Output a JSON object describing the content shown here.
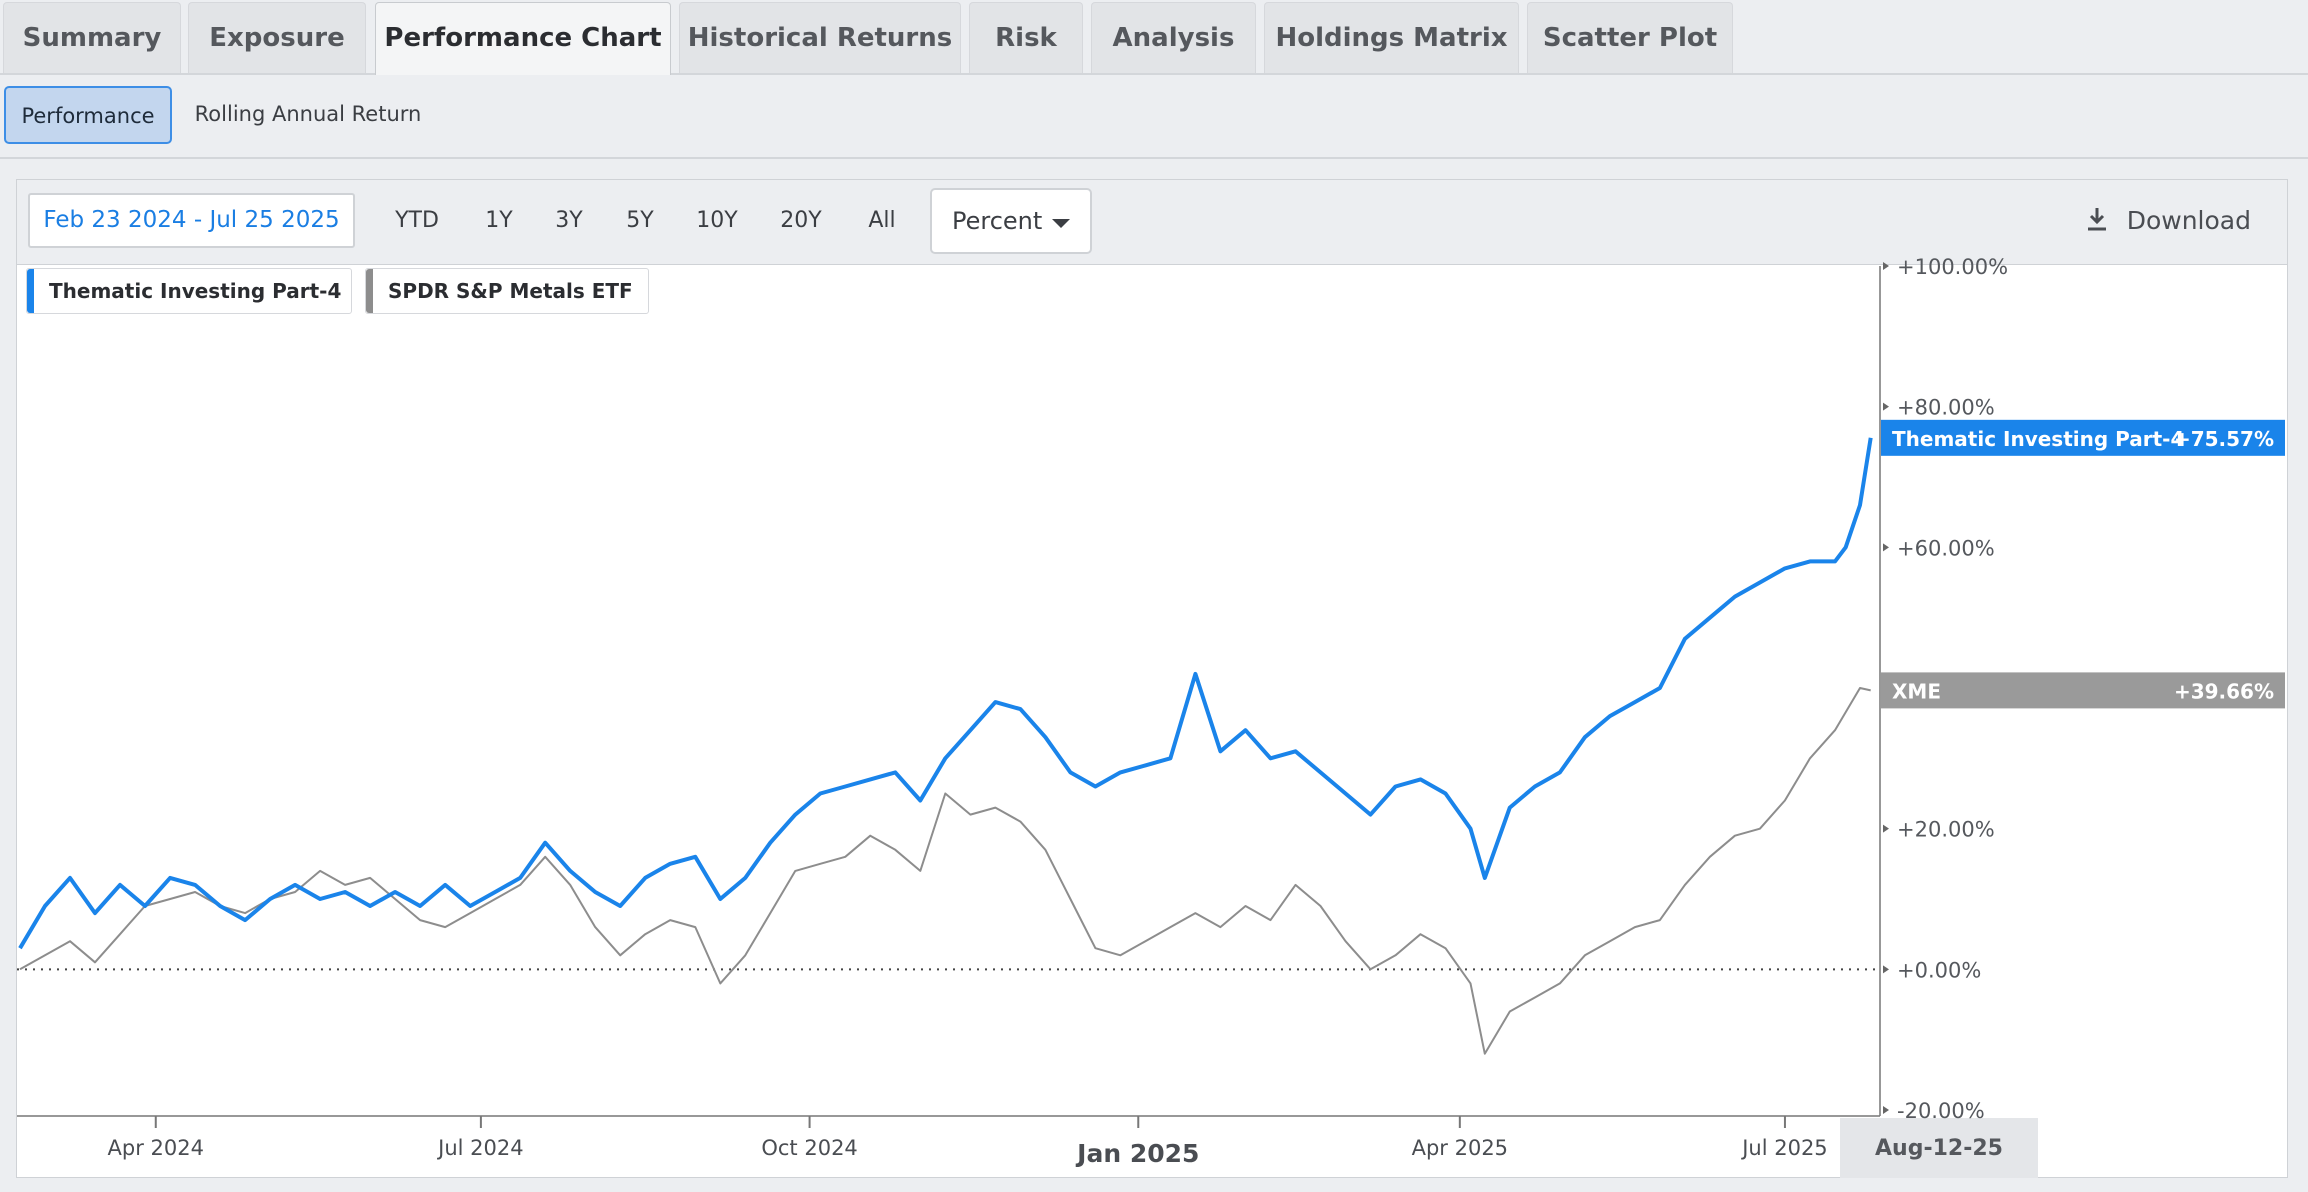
{
  "tabs": [
    "Summary",
    "Exposure",
    "Performance Chart",
    "Historical Returns",
    "Risk",
    "Analysis",
    "Holdings Matrix",
    "Scatter Plot"
  ],
  "active_tab": "Performance Chart",
  "subtabs": [
    "Performance",
    "Rolling Annual Return"
  ],
  "toolbar": {
    "date_range": "Feb 23 2024 - Jul 25 2025",
    "periods": [
      "YTD",
      "1Y",
      "3Y",
      "5Y",
      "10Y",
      "20Y",
      "All"
    ],
    "unit": "Percent",
    "download_label": "Download"
  },
  "colors": {
    "primary": "#1a84ea",
    "benchmark": "#8d8d8d",
    "active_subtab": "#c3d6ee"
  },
  "chart_data": {
    "type": "line",
    "ylim": [
      -20,
      100
    ],
    "yticks": [
      "+100.00%",
      "+80.00%",
      "+60.00%",
      "+20.00%",
      "+0.00%",
      "-20.00%"
    ],
    "ytick_values": [
      100,
      80,
      60,
      20,
      0,
      -20
    ],
    "xtick_labels": [
      "Apr 2024",
      "Jul 2024",
      "Oct 2024",
      "Jan 2025",
      "Apr 2025",
      "Jul 2025"
    ],
    "xtick_dates": [
      "2024-04-01",
      "2024-07-01",
      "2024-10-01",
      "2025-01-01",
      "2025-04-01",
      "2025-07-01"
    ],
    "xlim": [
      "2024-02-23",
      "2025-08-12"
    ],
    "crosshair_date_label": "Aug-12-25",
    "zero_line": true,
    "legend_position": "top-left",
    "series": [
      {
        "name": "Thematic Investing Part-4",
        "legend_label": "Thematic Investing Part-4",
        "end_label": "Thematic Investing Part-4",
        "end_value_label": "+75.57%",
        "color": "#1a84ea",
        "points": [
          [
            "2024-02-23",
            3
          ],
          [
            "2024-03-01",
            9
          ],
          [
            "2024-03-08",
            13
          ],
          [
            "2024-03-15",
            8
          ],
          [
            "2024-03-22",
            12
          ],
          [
            "2024-03-29",
            9
          ],
          [
            "2024-04-05",
            13
          ],
          [
            "2024-04-12",
            12
          ],
          [
            "2024-04-19",
            9
          ],
          [
            "2024-04-26",
            7
          ],
          [
            "2024-05-03",
            10
          ],
          [
            "2024-05-10",
            12
          ],
          [
            "2024-05-17",
            10
          ],
          [
            "2024-05-24",
            11
          ],
          [
            "2024-05-31",
            9
          ],
          [
            "2024-06-07",
            11
          ],
          [
            "2024-06-14",
            9
          ],
          [
            "2024-06-21",
            12
          ],
          [
            "2024-06-28",
            9
          ],
          [
            "2024-07-05",
            11
          ],
          [
            "2024-07-12",
            13
          ],
          [
            "2024-07-19",
            18
          ],
          [
            "2024-07-26",
            14
          ],
          [
            "2024-08-02",
            11
          ],
          [
            "2024-08-09",
            9
          ],
          [
            "2024-08-16",
            13
          ],
          [
            "2024-08-23",
            15
          ],
          [
            "2024-08-30",
            16
          ],
          [
            "2024-09-06",
            10
          ],
          [
            "2024-09-13",
            13
          ],
          [
            "2024-09-20",
            18
          ],
          [
            "2024-09-27",
            22
          ],
          [
            "2024-10-04",
            25
          ],
          [
            "2024-10-11",
            26
          ],
          [
            "2024-10-18",
            27
          ],
          [
            "2024-10-25",
            28
          ],
          [
            "2024-11-01",
            24
          ],
          [
            "2024-11-08",
            30
          ],
          [
            "2024-11-15",
            34
          ],
          [
            "2024-11-22",
            38
          ],
          [
            "2024-11-29",
            37
          ],
          [
            "2024-12-06",
            33
          ],
          [
            "2024-12-13",
            28
          ],
          [
            "2024-12-20",
            26
          ],
          [
            "2024-12-27",
            28
          ],
          [
            "2025-01-03",
            29
          ],
          [
            "2025-01-10",
            30
          ],
          [
            "2025-01-17",
            42
          ],
          [
            "2025-01-24",
            31
          ],
          [
            "2025-01-31",
            34
          ],
          [
            "2025-02-07",
            30
          ],
          [
            "2025-02-14",
            31
          ],
          [
            "2025-02-21",
            28
          ],
          [
            "2025-02-28",
            25
          ],
          [
            "2025-03-07",
            22
          ],
          [
            "2025-03-14",
            26
          ],
          [
            "2025-03-21",
            27
          ],
          [
            "2025-03-28",
            25
          ],
          [
            "2025-04-04",
            20
          ],
          [
            "2025-04-08",
            13
          ],
          [
            "2025-04-15",
            23
          ],
          [
            "2025-04-22",
            26
          ],
          [
            "2025-04-29",
            28
          ],
          [
            "2025-05-06",
            33
          ],
          [
            "2025-05-13",
            36
          ],
          [
            "2025-05-20",
            38
          ],
          [
            "2025-05-27",
            40
          ],
          [
            "2025-06-03",
            47
          ],
          [
            "2025-06-10",
            50
          ],
          [
            "2025-06-17",
            53
          ],
          [
            "2025-06-24",
            55
          ],
          [
            "2025-07-01",
            57
          ],
          [
            "2025-07-08",
            58
          ],
          [
            "2025-07-15",
            58
          ],
          [
            "2025-07-18",
            60
          ],
          [
            "2025-07-22",
            66
          ],
          [
            "2025-07-25",
            75.57
          ]
        ]
      },
      {
        "name": "SPDR S&P Metals ETF",
        "legend_label": "SPDR S&P Metals ETF",
        "end_label": "XME",
        "end_value_label": "+39.66%",
        "color": "#8d8d8d",
        "points": [
          [
            "2024-02-23",
            0
          ],
          [
            "2024-03-01",
            2
          ],
          [
            "2024-03-08",
            4
          ],
          [
            "2024-03-15",
            1
          ],
          [
            "2024-03-22",
            5
          ],
          [
            "2024-03-29",
            9
          ],
          [
            "2024-04-05",
            10
          ],
          [
            "2024-04-12",
            11
          ],
          [
            "2024-04-19",
            9
          ],
          [
            "2024-04-26",
            8
          ],
          [
            "2024-05-03",
            10
          ],
          [
            "2024-05-10",
            11
          ],
          [
            "2024-05-17",
            14
          ],
          [
            "2024-05-24",
            12
          ],
          [
            "2024-05-31",
            13
          ],
          [
            "2024-06-07",
            10
          ],
          [
            "2024-06-14",
            7
          ],
          [
            "2024-06-21",
            6
          ],
          [
            "2024-06-28",
            8
          ],
          [
            "2024-07-05",
            10
          ],
          [
            "2024-07-12",
            12
          ],
          [
            "2024-07-19",
            16
          ],
          [
            "2024-07-26",
            12
          ],
          [
            "2024-08-02",
            6
          ],
          [
            "2024-08-09",
            2
          ],
          [
            "2024-08-16",
            5
          ],
          [
            "2024-08-23",
            7
          ],
          [
            "2024-08-30",
            6
          ],
          [
            "2024-09-06",
            -2
          ],
          [
            "2024-09-13",
            2
          ],
          [
            "2024-09-20",
            8
          ],
          [
            "2024-09-27",
            14
          ],
          [
            "2024-10-04",
            15
          ],
          [
            "2024-10-11",
            16
          ],
          [
            "2024-10-18",
            19
          ],
          [
            "2024-10-25",
            17
          ],
          [
            "2024-11-01",
            14
          ],
          [
            "2024-11-08",
            25
          ],
          [
            "2024-11-15",
            22
          ],
          [
            "2024-11-22",
            23
          ],
          [
            "2024-11-29",
            21
          ],
          [
            "2024-12-06",
            17
          ],
          [
            "2024-12-13",
            10
          ],
          [
            "2024-12-20",
            3
          ],
          [
            "2024-12-27",
            2
          ],
          [
            "2025-01-03",
            4
          ],
          [
            "2025-01-10",
            6
          ],
          [
            "2025-01-17",
            8
          ],
          [
            "2025-01-24",
            6
          ],
          [
            "2025-01-31",
            9
          ],
          [
            "2025-02-07",
            7
          ],
          [
            "2025-02-14",
            12
          ],
          [
            "2025-02-21",
            9
          ],
          [
            "2025-02-28",
            4
          ],
          [
            "2025-03-07",
            0
          ],
          [
            "2025-03-14",
            2
          ],
          [
            "2025-03-21",
            5
          ],
          [
            "2025-03-28",
            3
          ],
          [
            "2025-04-04",
            -2
          ],
          [
            "2025-04-08",
            -12
          ],
          [
            "2025-04-15",
            -6
          ],
          [
            "2025-04-22",
            -4
          ],
          [
            "2025-04-29",
            -2
          ],
          [
            "2025-05-06",
            2
          ],
          [
            "2025-05-13",
            4
          ],
          [
            "2025-05-20",
            6
          ],
          [
            "2025-05-27",
            7
          ],
          [
            "2025-06-03",
            12
          ],
          [
            "2025-06-10",
            16
          ],
          [
            "2025-06-17",
            19
          ],
          [
            "2025-06-24",
            20
          ],
          [
            "2025-07-01",
            24
          ],
          [
            "2025-07-08",
            30
          ],
          [
            "2025-07-15",
            34
          ],
          [
            "2025-07-22",
            40
          ],
          [
            "2025-07-25",
            39.66
          ]
        ]
      }
    ]
  }
}
